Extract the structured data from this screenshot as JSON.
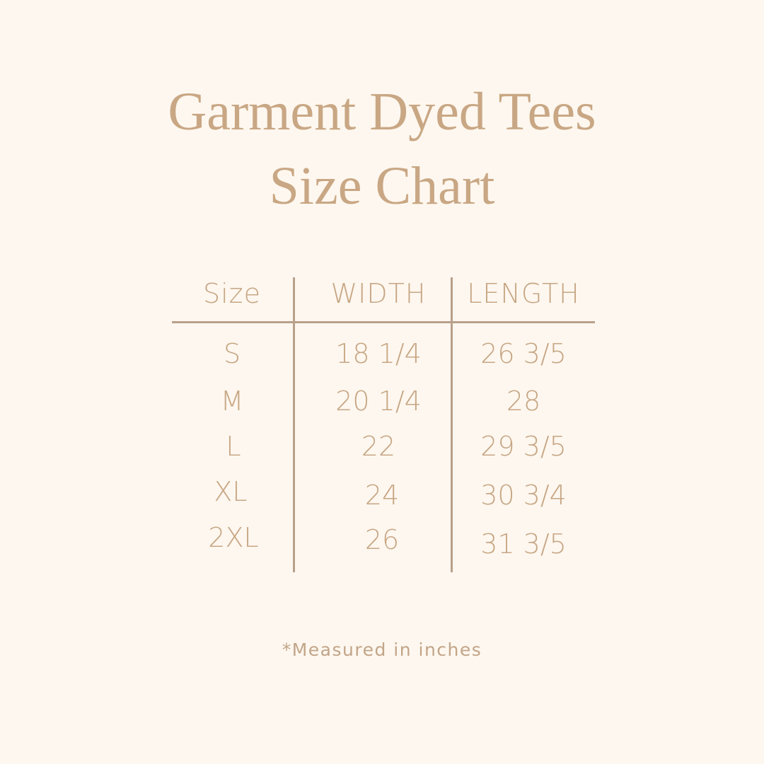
{
  "title": {
    "line1": "Garment Dyed Tees",
    "line2": "Size Chart"
  },
  "table": {
    "headers": [
      "Size",
      "WIDTH",
      "LENGTH"
    ],
    "rows": [
      [
        "S",
        "18 1/4",
        "26 3/5"
      ],
      [
        "M",
        "20 1/4",
        "28"
      ],
      [
        "L",
        "22",
        "29 3/5"
      ],
      [
        "XL",
        "24",
        "30 3/4"
      ],
      [
        "2XL",
        "26",
        "31 3/5"
      ]
    ]
  },
  "footnote": "*Measured in inches",
  "colors": {
    "background": "#fdf7ef",
    "text": "#c7a684",
    "rule": "#b9a08a"
  }
}
